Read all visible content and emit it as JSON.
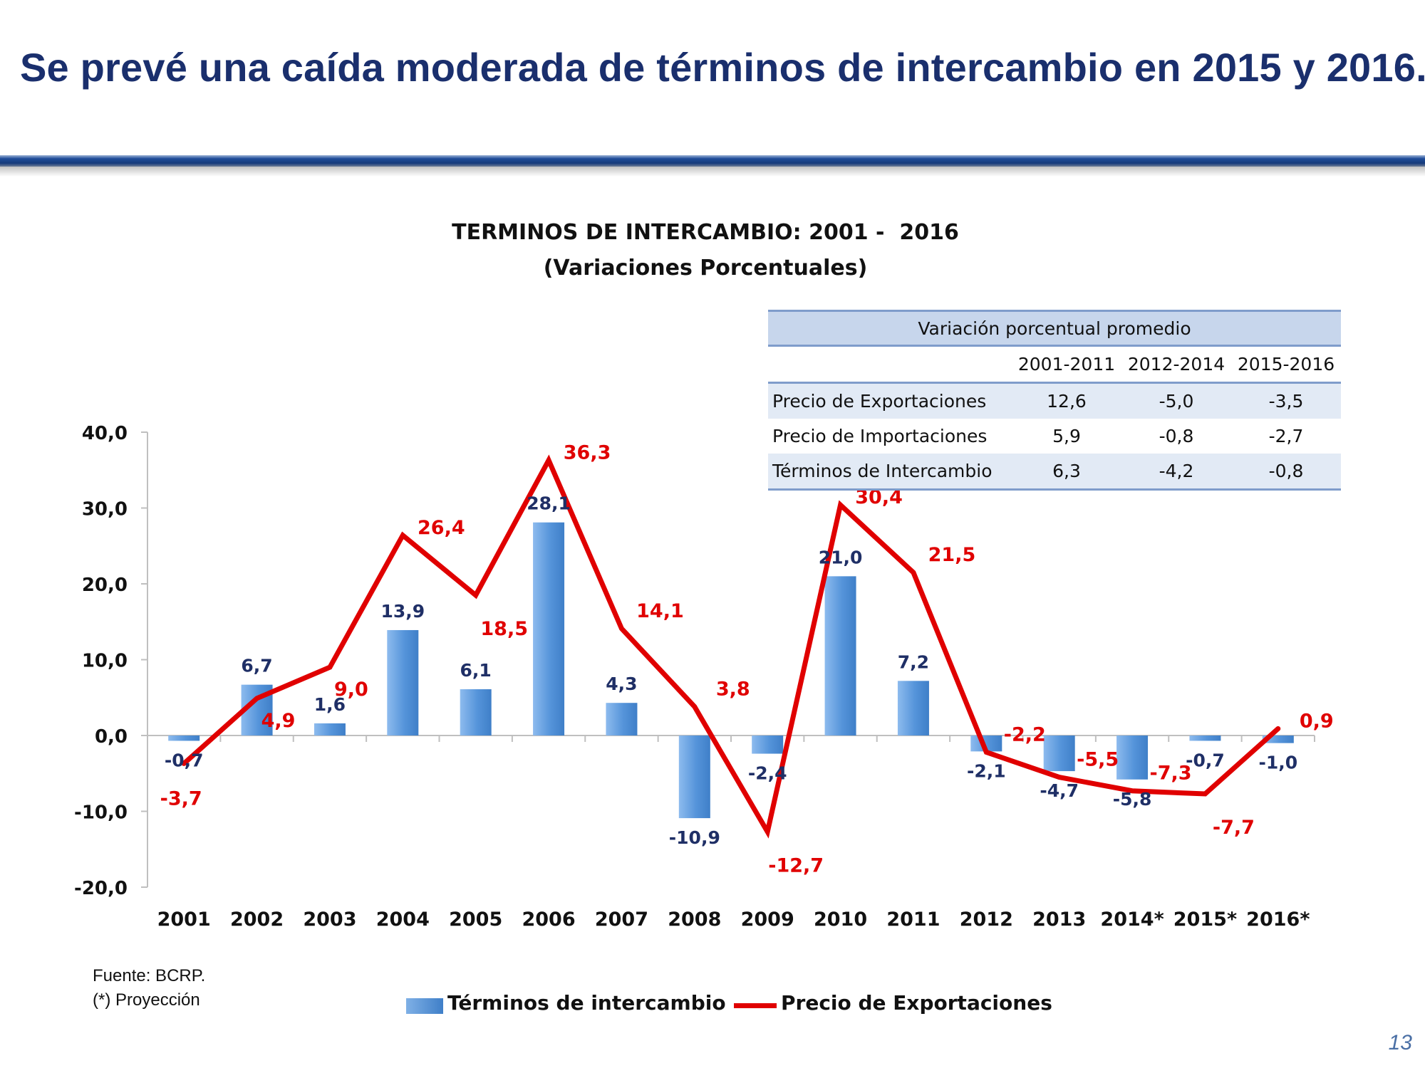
{
  "page": {
    "title": "Se prevé una caída moderada de términos de intercambio en 2015 y 2016.",
    "page_number": "13",
    "source": "Fuente: BCRP.",
    "note": "(*) Proyección"
  },
  "table": {
    "header": "Variación porcentual promedio",
    "periods": [
      "2001-2011",
      "2012-2014",
      "2015-2016"
    ],
    "rows": [
      {
        "label": "Precio de Exportaciones",
        "values": [
          "12,6",
          "-5,0",
          "-3,5"
        ]
      },
      {
        "label": "Precio de Importaciones",
        "values": [
          "5,9",
          "-0,8",
          "-2,7"
        ]
      },
      {
        "label": "Términos de Intercambio",
        "values": [
          "6,3",
          "-4,2",
          "-0,8"
        ]
      }
    ]
  },
  "chart_data": {
    "type": "bar",
    "title": "TERMINOS DE INTERCAMBIO: 2001 -  2016",
    "subtitle": "(Variaciones Porcentuales)",
    "categories": [
      "2001",
      "2002",
      "2003",
      "2004",
      "2005",
      "2006",
      "2007",
      "2008",
      "2009",
      "2010",
      "2011",
      "2012",
      "2013",
      "2014*",
      "2015*",
      "2016*"
    ],
    "ylim": [
      -20,
      40
    ],
    "yticks": [
      -20,
      -10,
      0,
      10,
      20,
      30,
      40
    ],
    "ytick_labels": [
      "-20,0",
      "-10,0",
      "0,0",
      "10,0",
      "20,0",
      "30,0",
      "40,0"
    ],
    "legend": [
      "Términos de intercambio",
      "Precio de Exportaciones"
    ],
    "series": [
      {
        "name": "Términos de intercambio",
        "kind": "bar",
        "color": "#4a8bd4",
        "label_color": "#1f2f66",
        "values": [
          -0.7,
          6.7,
          1.6,
          13.9,
          6.1,
          28.1,
          4.3,
          -10.9,
          -2.4,
          21.0,
          7.2,
          -2.1,
          -4.7,
          -5.8,
          -0.7,
          -1.0
        ],
        "labels": [
          "-0,7",
          "6,7",
          "1,6",
          "13,9",
          "6,1",
          "28,1",
          "4,3",
          "-10,9",
          "-2,4",
          "21,0",
          "7,2",
          "-2,1",
          "-4,7",
          "-5,8",
          "-0,7",
          "-1,0"
        ]
      },
      {
        "name": "Precio de Exportaciones",
        "kind": "line",
        "color": "#e00000",
        "values": [
          -3.7,
          4.9,
          9.0,
          26.4,
          18.5,
          36.3,
          14.1,
          3.8,
          -12.7,
          30.4,
          21.5,
          -2.2,
          -5.5,
          -7.3,
          -7.7,
          0.9
        ],
        "labels": [
          "-3,7",
          "4,9",
          "9,0",
          "26,4",
          "18,5",
          "36,3",
          "14,1",
          "3,8",
          "-12,7",
          "30,4",
          "21,5",
          "-2,2",
          "-5,5",
          "-7,3",
          "-7,7",
          "0,9"
        ]
      }
    ]
  }
}
